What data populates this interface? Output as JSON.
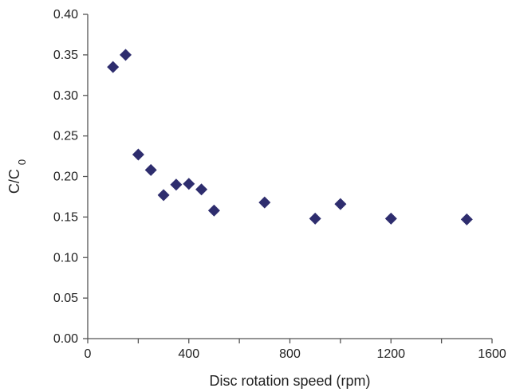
{
  "chart_data": {
    "type": "scatter",
    "title": "",
    "xlabel": "Disc rotation speed (rpm)",
    "ylabel": {
      "main": "C/C",
      "subscript": "0"
    },
    "xlim": [
      0,
      1600
    ],
    "ylim": [
      0,
      0.4
    ],
    "x_ticks": [
      0,
      200,
      400,
      600,
      800,
      1000,
      1200,
      1400,
      1600
    ],
    "x_tick_labels": [
      "0",
      "",
      "400",
      "",
      "800",
      "",
      "1200",
      "",
      "1600"
    ],
    "y_ticks": [
      0,
      0.05,
      0.1,
      0.15,
      0.2,
      0.25,
      0.3,
      0.35,
      0.4
    ],
    "y_tick_labels": [
      "0.00",
      "0.05",
      "0.10",
      "0.15",
      "0.20",
      "0.25",
      "0.30",
      "0.35",
      "0.40"
    ],
    "grid": false,
    "marker": "diamond",
    "marker_color": "#2e2d6e",
    "points": [
      {
        "x": 100,
        "y": 0.335
      },
      {
        "x": 150,
        "y": 0.35
      },
      {
        "x": 200,
        "y": 0.227
      },
      {
        "x": 250,
        "y": 0.208
      },
      {
        "x": 300,
        "y": 0.177
      },
      {
        "x": 350,
        "y": 0.19
      },
      {
        "x": 400,
        "y": 0.191
      },
      {
        "x": 450,
        "y": 0.184
      },
      {
        "x": 500,
        "y": 0.158
      },
      {
        "x": 700,
        "y": 0.168
      },
      {
        "x": 900,
        "y": 0.148
      },
      {
        "x": 1000,
        "y": 0.166
      },
      {
        "x": 1200,
        "y": 0.148
      },
      {
        "x": 1500,
        "y": 0.147
      }
    ]
  }
}
